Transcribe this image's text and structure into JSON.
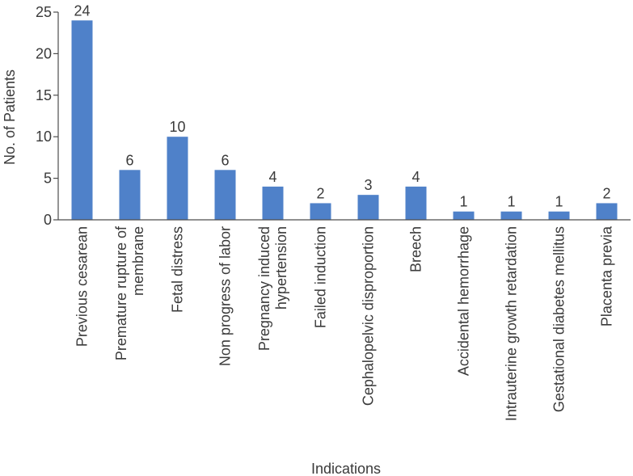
{
  "chart_data": {
    "type": "bar",
    "categories": [
      [
        "Previous cesarean"
      ],
      [
        "Premature rupture of",
        "membrane"
      ],
      [
        "Fetal distress"
      ],
      [
        "Non progress of labor"
      ],
      [
        "Pregnancy induced",
        "hypertension"
      ],
      [
        "Failed induction"
      ],
      [
        "Cephalopelvic disproportion"
      ],
      [
        "Breech"
      ],
      [
        "Accidental hemorrhage"
      ],
      [
        "Intrauterine growth retardation"
      ],
      [
        "Gestational diabetes mellitus"
      ],
      [
        "Placenta previa"
      ]
    ],
    "values": [
      24,
      6,
      10,
      6,
      4,
      2,
      3,
      4,
      1,
      1,
      1,
      2
    ],
    "title": "",
    "xlabel": "Indications",
    "ylabel": "No. of Patients",
    "ylim": [
      0,
      25
    ],
    "yticks": [
      0,
      5,
      10,
      15,
      20,
      25
    ],
    "bar_color": "#4f81c9",
    "grid": false,
    "legend": "none"
  }
}
